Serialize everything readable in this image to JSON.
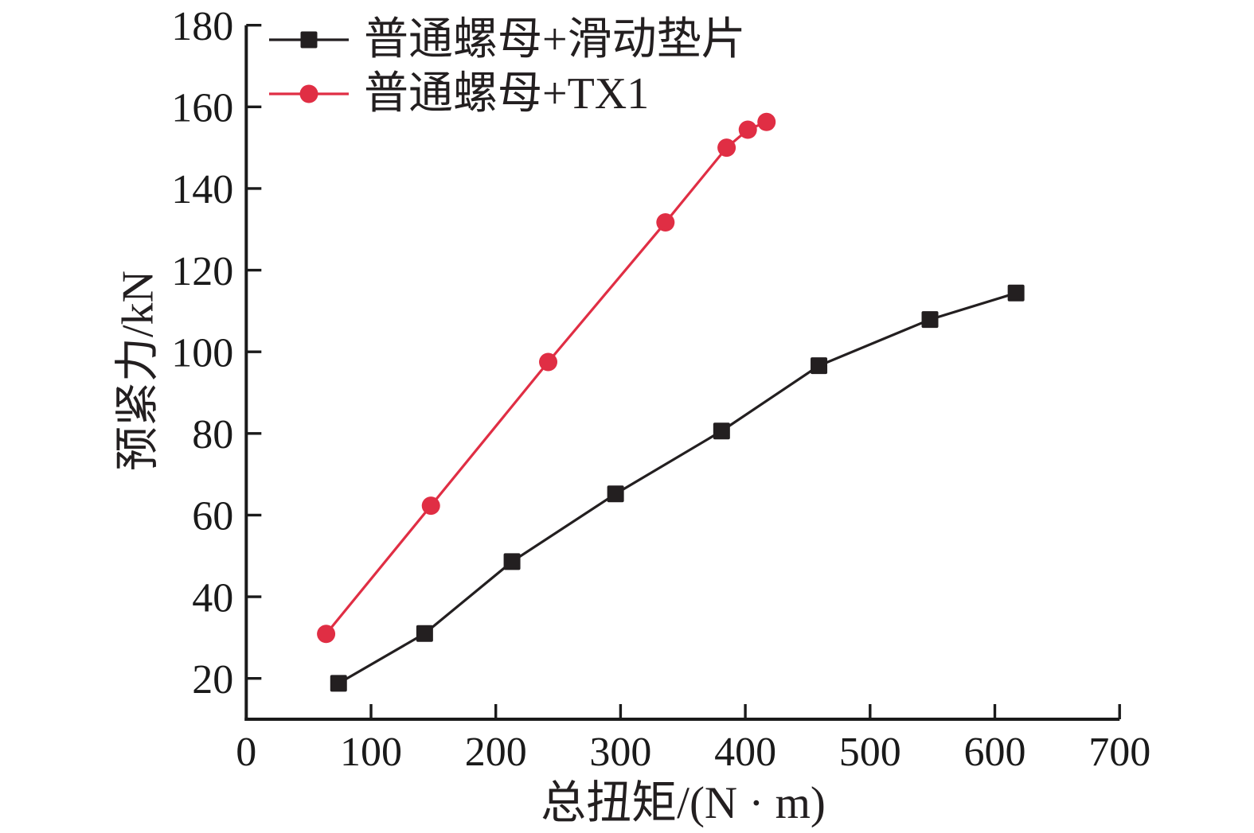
{
  "chart_data": {
    "type": "line",
    "title": "",
    "xlabel": "总扭矩/(N · m)",
    "ylabel": "预紧力/kN",
    "xlim": [
      0,
      700
    ],
    "ylim": [
      10,
      180
    ],
    "xticks": [
      0,
      100,
      200,
      300,
      400,
      500,
      600,
      700
    ],
    "yticks": [
      20,
      40,
      60,
      80,
      100,
      120,
      140,
      160,
      180
    ],
    "grid": false,
    "legend_position": "top-left-inside",
    "axis_color": "#1a1a1a",
    "background": "#ffffff",
    "series": [
      {
        "name": "普通螺母+滑动垫片",
        "marker": "square",
        "color": "#231f20",
        "points": [
          [
            74,
            18.8
          ],
          [
            143,
            31.0
          ],
          [
            213,
            48.6
          ],
          [
            296,
            65.2
          ],
          [
            381,
            80.6
          ],
          [
            459,
            96.6
          ],
          [
            548,
            107.9
          ],
          [
            617,
            114.4
          ]
        ]
      },
      {
        "name": "普通螺母+TX1",
        "marker": "circle",
        "color": "#e02e44",
        "points": [
          [
            64,
            30.9
          ],
          [
            148,
            62.3
          ],
          [
            242,
            97.5
          ],
          [
            336,
            131.7
          ],
          [
            385,
            150.0
          ],
          [
            402,
            154.4
          ],
          [
            417,
            156.3
          ]
        ]
      }
    ]
  }
}
